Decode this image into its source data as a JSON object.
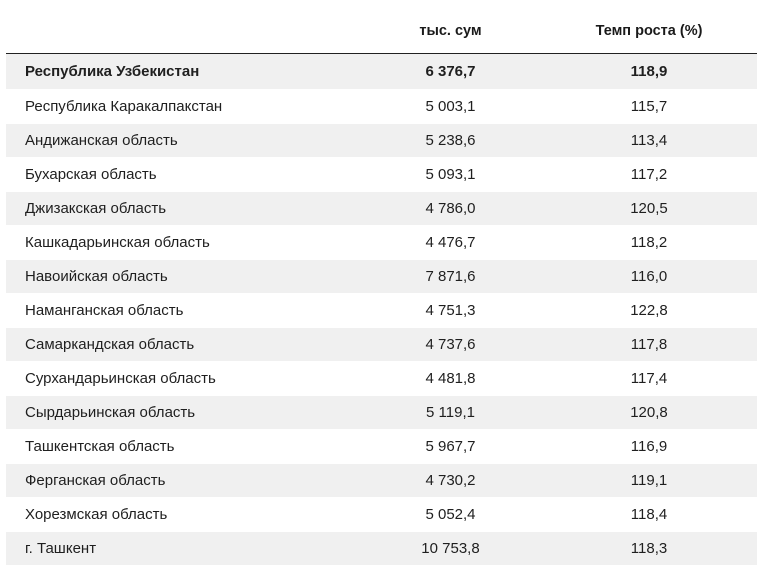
{
  "table": {
    "headers": {
      "region": "",
      "sum": "тыс. сум",
      "growth": "Темп роста (%)"
    },
    "rows": [
      {
        "region": "Республика Узбекистан",
        "sum": "6 376,7",
        "growth": "118,9"
      },
      {
        "region": "Республика Каракалпакстан",
        "sum": "5 003,1",
        "growth": "115,7"
      },
      {
        "region": "Андижанская область",
        "sum": "5 238,6",
        "growth": "113,4"
      },
      {
        "region": "Бухарская область",
        "sum": "5 093,1",
        "growth": "117,2"
      },
      {
        "region": "Джизакская область",
        "sum": "4 786,0",
        "growth": "120,5"
      },
      {
        "region": "Кашкадарьинская область",
        "sum": "4 476,7",
        "growth": "118,2"
      },
      {
        "region": "Навоийская область",
        "sum": "7 871,6",
        "growth": "116,0"
      },
      {
        "region": "Наманганская область",
        "sum": "4 751,3",
        "growth": "122,8"
      },
      {
        "region": "Самаркандская область",
        "sum": "4 737,6",
        "growth": "117,8"
      },
      {
        "region": "Сурхандарьинская область",
        "sum": "4 481,8",
        "growth": "117,4"
      },
      {
        "region": "Сырдарьинская область",
        "sum": "5 119,1",
        "growth": "120,8"
      },
      {
        "region": "Ташкентская область",
        "sum": "5 967,7",
        "growth": "116,9"
      },
      {
        "region": "Ферганская область",
        "sum": "4 730,2",
        "growth": "119,1"
      },
      {
        "region": "Хорезмская область",
        "sum": "5 052,4",
        "growth": "118,4"
      },
      {
        "region": "г. Ташкент",
        "sum": "10 753,8",
        "growth": "118,3"
      }
    ]
  }
}
